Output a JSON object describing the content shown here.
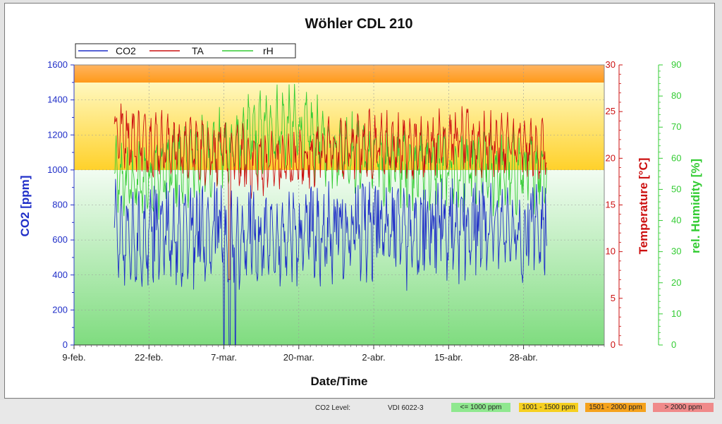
{
  "chart_data": {
    "type": "line",
    "title": "Wöhler CDL 210",
    "xlabel": "Date/Time",
    "x_ticks": [
      "9-feb.",
      "22-feb.",
      "7-mar.",
      "20-mar.",
      "2-abr.",
      "15-abr.",
      "28-abr."
    ],
    "x_range": [
      "9-feb.",
      "12-may."
    ],
    "data_x_range": [
      "16-feb.",
      "2-may."
    ],
    "legend_placement": "top-left",
    "grid": true,
    "axes": {
      "co2": {
        "label": "CO2 [ppm]",
        "ylim": [
          0,
          1600
        ],
        "ticks": [
          "0",
          "200",
          "400",
          "600",
          "800",
          "1000",
          "1200",
          "1400",
          "1600"
        ],
        "color": "#1f2ec8"
      },
      "temperature": {
        "label": "Temperature [°C]",
        "ylim": [
          0,
          30
        ],
        "ticks": [
          "0",
          "5",
          "10",
          "15",
          "20",
          "25",
          "30"
        ],
        "color": "#cc1010"
      },
      "humidity": {
        "label": "rel. Humidity [%]",
        "ylim": [
          0,
          90
        ],
        "ticks": [
          "0",
          "10",
          "20",
          "30",
          "40",
          "50",
          "60",
          "70",
          "80",
          "90"
        ],
        "color": "#33cc33"
      }
    },
    "bands": [
      {
        "from": 0,
        "to": 1000,
        "color": "#90e890",
        "label": "<= 1000 ppm"
      },
      {
        "from": 1000,
        "to": 1500,
        "color": "#ffd820",
        "label": "1001 - 1500 ppm"
      },
      {
        "from": 1500,
        "to": 1600,
        "color": "#ff9a1a",
        "label": "1501 - 2000 ppm"
      }
    ],
    "series": [
      {
        "name": "CO2",
        "axis": "co2",
        "color": "#1f2ec8",
        "typical_range": [
          400,
          1000
        ],
        "baseline": 600,
        "approx_points": [
          [
            "16-feb.",
            620
          ],
          [
            "20-feb.",
            580
          ],
          [
            "24-feb.",
            640
          ],
          [
            "28-feb.",
            600
          ],
          [
            "4-mar.",
            620
          ],
          [
            "8-mar.",
            580
          ],
          [
            "12-mar.",
            600
          ],
          [
            "16-mar.",
            610
          ],
          [
            "20-mar.",
            590
          ],
          [
            "24-mar.",
            620
          ],
          [
            "28-mar.",
            600
          ],
          [
            "1-abr.",
            640
          ],
          [
            "5-abr.",
            610
          ],
          [
            "9-abr.",
            600
          ],
          [
            "13-abr.",
            620
          ],
          [
            "17-abr.",
            640
          ],
          [
            "21-abr.",
            610
          ],
          [
            "25-abr.",
            630
          ],
          [
            "29-abr.",
            600
          ],
          [
            "2-may.",
            650
          ]
        ],
        "dropouts": [
          [
            "7-mar.",
            0
          ],
          [
            "8-mar.",
            0
          ],
          [
            "9-mar.",
            0
          ]
        ]
      },
      {
        "name": "TA",
        "axis": "temperature",
        "color": "#cc1010",
        "typical_range": [
          17,
          25
        ],
        "baseline": 21,
        "approx_points": [
          [
            "16-feb.",
            23
          ],
          [
            "20-feb.",
            22
          ],
          [
            "24-feb.",
            21.5
          ],
          [
            "28-feb.",
            21
          ],
          [
            "4-mar.",
            21
          ],
          [
            "8-mar.",
            20.5
          ],
          [
            "12-mar.",
            19.5
          ],
          [
            "16-mar.",
            19.5
          ],
          [
            "20-mar.",
            19.5
          ],
          [
            "24-mar.",
            21
          ],
          [
            "28-mar.",
            21
          ],
          [
            "1-abr.",
            21.5
          ],
          [
            "5-abr.",
            21.5
          ],
          [
            "9-abr.",
            21
          ],
          [
            "13-abr.",
            22
          ],
          [
            "17-abr.",
            22
          ],
          [
            "21-abr.",
            21.5
          ],
          [
            "25-abr.",
            21.5
          ],
          [
            "29-abr.",
            21
          ],
          [
            "2-may.",
            21
          ]
        ],
        "dropouts": [
          [
            "8-mar.",
            7
          ]
        ]
      },
      {
        "name": "rH",
        "axis": "humidity",
        "color": "#33cc33",
        "typical_range": [
          45,
          75
        ],
        "baseline": 58,
        "approx_points": [
          [
            "16-feb.",
            53
          ],
          [
            "20-feb.",
            52
          ],
          [
            "24-feb.",
            55
          ],
          [
            "28-feb.",
            58
          ],
          [
            "4-mar.",
            60
          ],
          [
            "8-mar.",
            63
          ],
          [
            "12-mar.",
            67
          ],
          [
            "16-mar.",
            70
          ],
          [
            "20-mar.",
            69
          ],
          [
            "24-mar.",
            65
          ],
          [
            "28-mar.",
            62
          ],
          [
            "1-abr.",
            60
          ],
          [
            "5-abr.",
            58
          ],
          [
            "9-abr.",
            58
          ],
          [
            "13-abr.",
            57
          ],
          [
            "17-abr.",
            55
          ],
          [
            "21-abr.",
            56
          ],
          [
            "25-abr.",
            55
          ],
          [
            "29-abr.",
            56
          ],
          [
            "2-may.",
            57
          ]
        ]
      }
    ]
  },
  "status_bar": {
    "co2_level_label": "CO2 Level:",
    "standard": "VDI 6022-3",
    "chips": [
      {
        "label": "<= 1000 ppm",
        "color": "#8fe88f"
      },
      {
        "label": "1001 - 1500 ppm",
        "color": "#f6d020"
      },
      {
        "label": "1501 - 2000 ppm",
        "color": "#f5a21c"
      },
      {
        "label": "> 2000 ppm",
        "color": "#f08a8a"
      }
    ]
  }
}
